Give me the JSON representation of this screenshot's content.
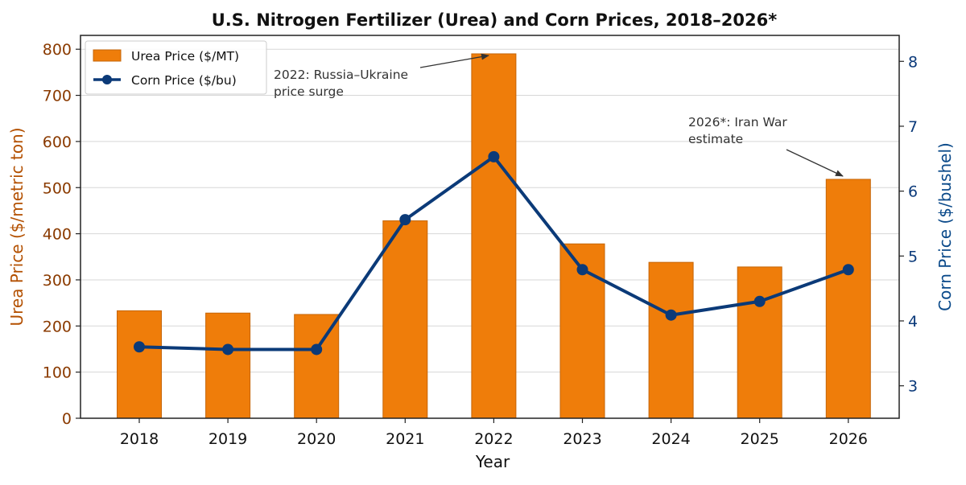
{
  "chart_data": {
    "type": "bar",
    "title": "U.S. Nitrogen Fertilizer (Urea) and Corn Prices, 2018–2026*",
    "xlabel": "Year",
    "ylabel": "Urea Price ($/metric ton)",
    "ylabel_right": "Corn Price ($/bushel)",
    "categories": [
      "2018",
      "2019",
      "2020",
      "2021",
      "2022",
      "2023",
      "2024",
      "2025",
      "2026"
    ],
    "series": [
      {
        "name": "Urea Price ($/MT)",
        "type": "bar",
        "axis": "left",
        "color": "#ef7d0a",
        "values": [
          233,
          228,
          225,
          428,
          790,
          378,
          338,
          328,
          518
        ]
      },
      {
        "name": "Corn Price ($/bu)",
        "type": "line",
        "axis": "right",
        "color": "#0b3a78",
        "values": [
          3.6,
          3.56,
          3.56,
          5.56,
          6.53,
          4.79,
          4.09,
          4.3,
          4.79
        ]
      }
    ],
    "ylim": [
      0,
      830
    ],
    "y_ticks": [
      0,
      100,
      200,
      300,
      400,
      500,
      600,
      700,
      800
    ],
    "ylim_right": [
      2.5,
      8.4
    ],
    "y_ticks_right": [
      3,
      4,
      5,
      6,
      7,
      8
    ],
    "grid": true,
    "legend_position": "top-left",
    "annotations": [
      {
        "lines": [
          "2022: Russia–Ukraine",
          "price surge"
        ],
        "target_category": "2022",
        "target_value": 790
      },
      {
        "lines": [
          "2026*: Iran War",
          "estimate"
        ],
        "target_category": "2026",
        "target_value": 518
      }
    ]
  }
}
